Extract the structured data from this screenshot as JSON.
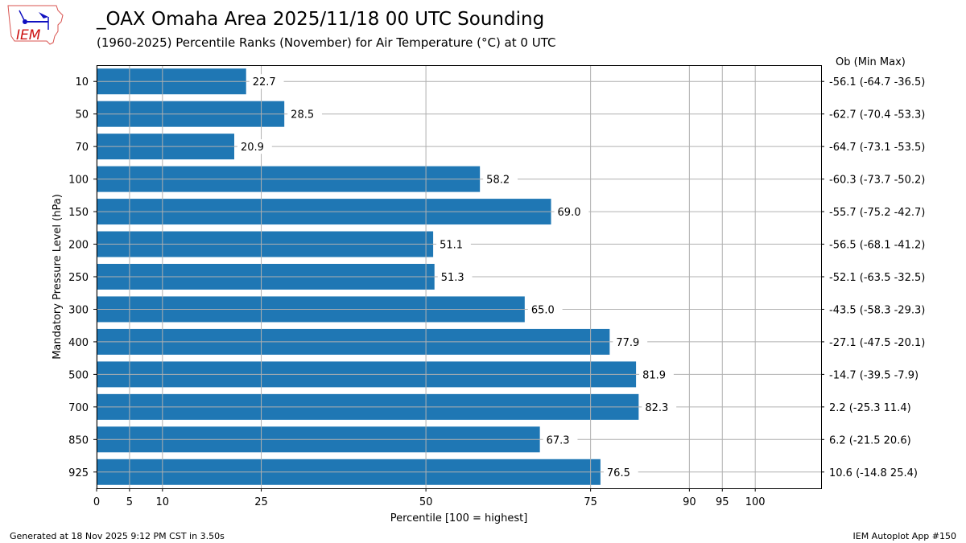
{
  "header": {
    "title": "_OAX Omaha Area  2025/11/18 00 UTC Sounding",
    "subtitle": "(1960-2025) Percentile Ranks (November) for Air Temperature (°C) at 0 UTC",
    "logo_text": "IEM"
  },
  "footer": {
    "left": "Generated at 18 Nov 2025 9:12 PM CST in 3.50s",
    "right": "IEM Autoplot App #150"
  },
  "chart_data": {
    "type": "bar",
    "orientation": "horizontal",
    "xlabel": "Percentile [100 = highest]",
    "ylabel": "Mandatory Pressure Level (hPa)",
    "right_header": "Ob  (Min  Max)",
    "xlim": [
      0,
      110
    ],
    "xticks": [
      0,
      5,
      10,
      25,
      50,
      75,
      90,
      95,
      100
    ],
    "grid": true,
    "bar_color": "#1f77b4",
    "categories": [
      "10",
      "50",
      "70",
      "100",
      "150",
      "200",
      "250",
      "300",
      "400",
      "500",
      "700",
      "850",
      "925"
    ],
    "values": [
      22.7,
      28.5,
      20.9,
      58.2,
      69.0,
      51.1,
      51.3,
      65.0,
      77.9,
      81.9,
      82.3,
      67.3,
      76.5
    ],
    "value_labels": [
      "22.7",
      "28.5",
      "20.9",
      "58.2",
      "69.0",
      "51.1",
      "51.3",
      "65.0",
      "77.9",
      "81.9",
      "82.3",
      "67.3",
      "76.5"
    ],
    "right_labels": [
      "-56.1 (-64.7 -36.5)",
      "-62.7 (-70.4 -53.3)",
      "-64.7 (-73.1 -53.5)",
      "-60.3 (-73.7 -50.2)",
      "-55.7 (-75.2 -42.7)",
      "-56.5 (-68.1 -41.2)",
      "-52.1 (-63.5 -32.5)",
      "-43.5 (-58.3 -29.3)",
      "-27.1 (-47.5 -20.1)",
      "-14.7 (-39.5 -7.9)",
      "2.2 (-25.3 11.4)",
      "6.2 (-21.5 20.6)",
      "10.6 (-14.8 25.4)"
    ]
  }
}
